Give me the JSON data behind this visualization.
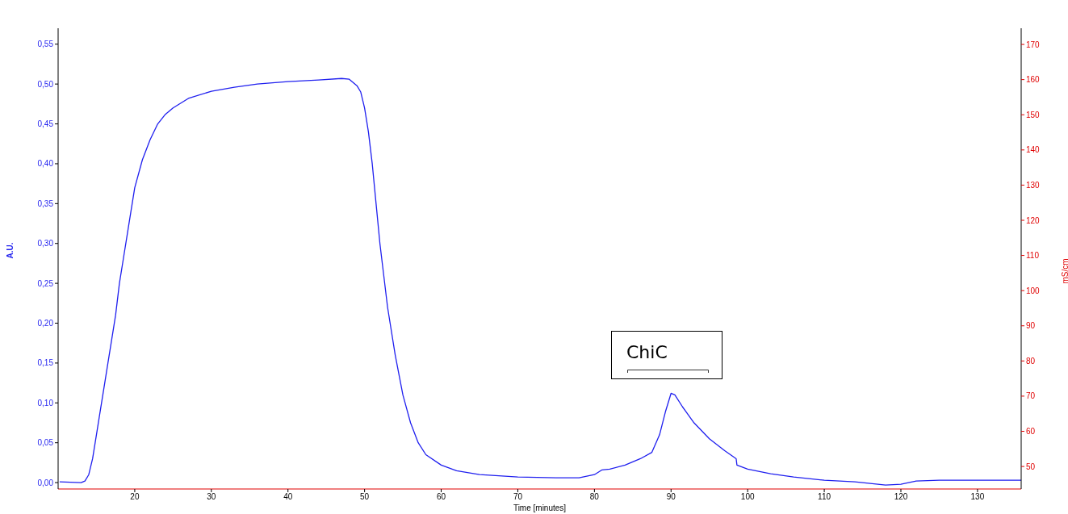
{
  "chart_data": {
    "type": "line",
    "xlabel": "Time [minutes]",
    "ylabel": "A.U.",
    "y2label": "mS/cm",
    "xlim": [
      10,
      135.7
    ],
    "xticks": [
      20,
      30,
      40,
      50,
      60,
      70,
      80,
      90,
      100,
      110,
      120,
      130
    ],
    "ylim": [
      -0.008,
      0.57
    ],
    "yticks": [
      {
        "value": 0,
        "label": "0,00"
      },
      {
        "value": 0.05,
        "label": "0,05"
      },
      {
        "value": 0.1,
        "label": "0,10"
      },
      {
        "value": 0.15,
        "label": "0,15"
      },
      {
        "value": 0.2,
        "label": "0,20"
      },
      {
        "value": 0.25,
        "label": "0,25"
      },
      {
        "value": 0.3,
        "label": "0,30"
      },
      {
        "value": 0.35,
        "label": "0,35"
      },
      {
        "value": 0.4,
        "label": "0,40"
      },
      {
        "value": 0.45,
        "label": "0,45"
      },
      {
        "value": 0.5,
        "label": "0,50"
      },
      {
        "value": 0.55,
        "label": "0,55"
      }
    ],
    "y2lim": [
      43.6,
      174.6
    ],
    "y2ticks": [
      50,
      60,
      70,
      80,
      90,
      100,
      110,
      120,
      130,
      140,
      150,
      160,
      170
    ],
    "grid": false,
    "legend": false,
    "marker": "none",
    "line_style": "solid",
    "annotations": [
      "ChiC"
    ],
    "series": [
      {
        "color": "#1f1fef",
        "x": [
          10.2,
          13,
          13.5,
          14,
          14.5,
          15,
          15.5,
          16,
          16.5,
          17,
          17.5,
          18,
          18.5,
          19,
          19.5,
          20,
          21,
          22,
          23,
          24,
          25,
          27,
          30,
          33,
          36,
          40,
          44,
          47,
          48,
          49,
          49.5,
          50,
          50.5,
          51,
          51.5,
          52,
          52.5,
          53,
          54,
          55,
          56,
          57,
          58,
          60,
          62,
          65,
          70,
          75,
          78,
          80,
          81,
          82,
          84,
          86,
          87.5,
          88.5,
          89.3,
          90,
          90.5,
          91.5,
          93,
          95,
          97,
          98.5,
          98.6,
          100,
          103,
          106,
          110,
          114,
          118,
          120,
          122,
          125,
          130,
          135.7
        ],
        "values": [
          0.001,
          0,
          0.002,
          0.01,
          0.03,
          0.06,
          0.09,
          0.12,
          0.15,
          0.18,
          0.21,
          0.25,
          0.28,
          0.31,
          0.34,
          0.37,
          0.405,
          0.43,
          0.45,
          0.462,
          0.47,
          0.482,
          0.491,
          0.496,
          0.5,
          0.503,
          0.505,
          0.507,
          0.506,
          0.498,
          0.49,
          0.47,
          0.44,
          0.4,
          0.35,
          0.3,
          0.26,
          0.22,
          0.16,
          0.11,
          0.075,
          0.05,
          0.035,
          0.022,
          0.015,
          0.01,
          0.007,
          0.006,
          0.006,
          0.01,
          0.016,
          0.017,
          0.022,
          0.03,
          0.038,
          0.06,
          0.09,
          0.112,
          0.11,
          0.095,
          0.075,
          0.055,
          0.04,
          0.03,
          0.022,
          0.017,
          0.011,
          0.007,
          0.003,
          0.001,
          -0.003,
          -0.002,
          0.002,
          0.003,
          0.003,
          0.003
        ]
      }
    ]
  }
}
